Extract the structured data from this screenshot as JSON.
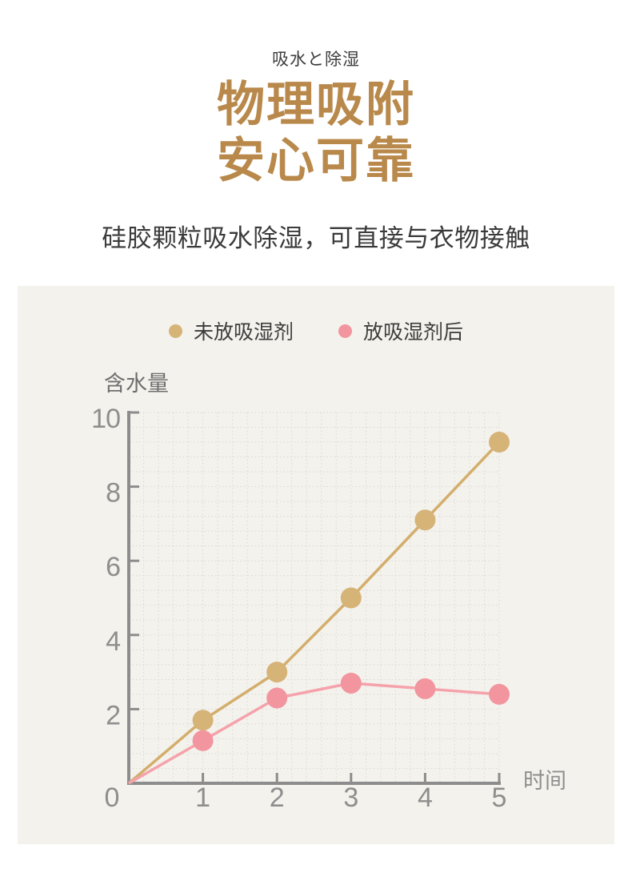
{
  "page": {
    "eyebrow": "吸水と除湿",
    "title_line1": "物理吸附",
    "title_line2": "安心可靠",
    "subtitle": "硅胶颗粒吸水除湿，可直接与衣物接触"
  },
  "colors": {
    "title_gold": "#B9894C",
    "panel_bg": "#F4F2ED",
    "axis": "#8C8C8C",
    "tick_text": "#8E8E8E",
    "axis_title_text": "#6E6E6E",
    "grid": "#DBD8D1",
    "legend_text": "#3C3C3C"
  },
  "chart_data": {
    "type": "line",
    "title": "",
    "xlabel": "时间",
    "ylabel": "含水量",
    "x": [
      0,
      1,
      2,
      3,
      4,
      5
    ],
    "xtick_labels": [
      "0",
      "1",
      "2",
      "3",
      "4",
      "5"
    ],
    "ytick_values": [
      2,
      4,
      6,
      8,
      10
    ],
    "ytick_labels": [
      "2",
      "4",
      "6",
      "8",
      "10"
    ],
    "xlim": [
      0,
      5
    ],
    "ylim": [
      0,
      10
    ],
    "grid": true,
    "legend_position": "top",
    "series": [
      {
        "name": "未放吸湿剂",
        "dot_color": "#D6B377",
        "line_color": "#D3AE6C",
        "values": [
          0,
          1.7,
          3.0,
          5.0,
          7.1,
          9.2
        ]
      },
      {
        "name": "放吸湿剂后",
        "dot_color": "#F2959F",
        "line_color": "#F5A2AB",
        "values": [
          0,
          1.15,
          2.3,
          2.7,
          2.55,
          2.4
        ]
      }
    ]
  }
}
